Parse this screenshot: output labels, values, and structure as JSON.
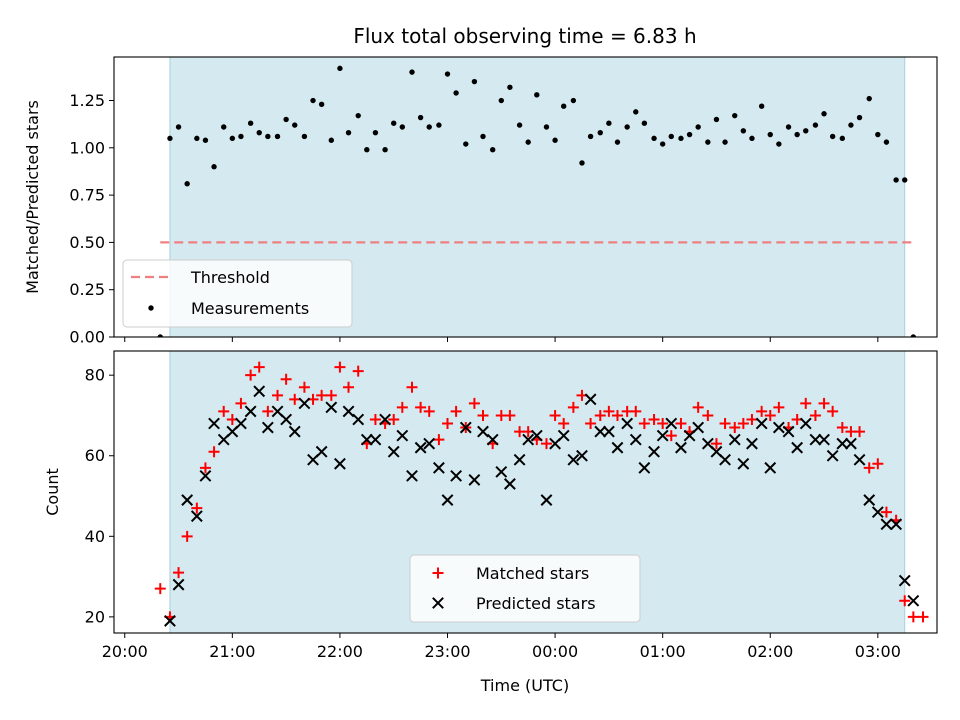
{
  "chart_data": {
    "title": "Flux total observing time = 6.83 h",
    "xlabel": "Time (UTC)",
    "x_axis": {
      "ticks": [
        "20:00",
        "21:00",
        "22:00",
        "23:00",
        "00:00",
        "01:00",
        "02:00",
        "03:00"
      ],
      "tick_hours": [
        0,
        1,
        2,
        3,
        4,
        5,
        6,
        7
      ],
      "range_hours_after_2000": [
        -0.1,
        7.55
      ]
    },
    "shaded_interval_hours_after_2000": [
      0.42,
      7.25
    ],
    "shade_color": "#d4eaf0",
    "panels": [
      {
        "type": "scatter",
        "ylabel": "Matched/Predicted stars",
        "ylim": [
          0.0,
          1.48
        ],
        "yticks": [
          0.0,
          0.25,
          0.5,
          0.75,
          1.0,
          1.25
        ],
        "ytick_labels": [
          "0.00",
          "0.25",
          "0.50",
          "0.75",
          "1.00",
          "1.25"
        ],
        "legend": {
          "position": "lower-left",
          "entries": [
            "Threshold",
            "Measurements"
          ]
        },
        "threshold": {
          "name": "Threshold",
          "value": 0.5,
          "x_range": [
            0.33,
            7.33
          ],
          "color": "#f08080",
          "style": "dashed"
        },
        "series": [
          {
            "name": "Measurements",
            "marker": "dot",
            "color": "#000000",
            "x": [
              0.33,
              0.42,
              0.5,
              0.58,
              0.67,
              0.75,
              0.83,
              0.92,
              1.0,
              1.08,
              1.17,
              1.25,
              1.33,
              1.42,
              1.5,
              1.58,
              1.67,
              1.75,
              1.83,
              1.92,
              2.0,
              2.08,
              2.17,
              2.25,
              2.33,
              2.42,
              2.5,
              2.58,
              2.67,
              2.75,
              2.83,
              2.92,
              3.0,
              3.08,
              3.17,
              3.25,
              3.33,
              3.42,
              3.5,
              3.58,
              3.67,
              3.75,
              3.83,
              3.92,
              4.0,
              4.08,
              4.17,
              4.25,
              4.33,
              4.42,
              4.5,
              4.58,
              4.67,
              4.75,
              4.83,
              4.92,
              5.0,
              5.08,
              5.17,
              5.25,
              5.33,
              5.42,
              5.5,
              5.58,
              5.67,
              5.75,
              5.83,
              5.92,
              6.0,
              6.08,
              6.17,
              6.25,
              6.33,
              6.42,
              6.5,
              6.58,
              6.67,
              6.75,
              6.83,
              6.92,
              7.0,
              7.08,
              7.17,
              7.25,
              7.33
            ],
            "y": [
              0.0,
              1.05,
              1.11,
              0.81,
              1.05,
              1.04,
              0.9,
              1.11,
              1.05,
              1.06,
              1.13,
              1.08,
              1.06,
              1.06,
              1.15,
              1.12,
              1.06,
              1.25,
              1.23,
              1.04,
              1.42,
              1.08,
              1.17,
              0.99,
              1.08,
              0.99,
              1.13,
              1.11,
              1.4,
              1.16,
              1.11,
              1.12,
              1.39,
              1.29,
              1.02,
              1.35,
              1.06,
              0.99,
              1.25,
              1.32,
              1.12,
              1.03,
              1.28,
              1.11,
              1.04,
              1.22,
              1.25,
              0.92,
              1.06,
              1.08,
              1.13,
              1.03,
              1.11,
              1.19,
              1.13,
              1.05,
              1.02,
              1.06,
              1.05,
              1.07,
              1.11,
              1.03,
              1.15,
              1.03,
              1.17,
              1.09,
              1.05,
              1.22,
              1.07,
              1.02,
              1.11,
              1.07,
              1.09,
              1.12,
              1.18,
              1.06,
              1.05,
              1.12,
              1.16,
              1.26,
              1.07,
              1.03,
              0.83,
              0.83,
              0.0
            ]
          }
        ]
      },
      {
        "type": "scatter",
        "ylabel": "Count",
        "ylim": [
          16,
          86
        ],
        "yticks": [
          20,
          40,
          60,
          80
        ],
        "ytick_labels": [
          "20",
          "40",
          "60",
          "80"
        ],
        "legend": {
          "position": "lower-center",
          "entries": [
            "Matched stars",
            "Predicted stars"
          ]
        },
        "series": [
          {
            "name": "Matched stars",
            "marker": "plus",
            "color": "#ff0000",
            "x": [
              0.33,
              0.42,
              0.5,
              0.58,
              0.67,
              0.75,
              0.83,
              0.92,
              1.0,
              1.08,
              1.17,
              1.25,
              1.33,
              1.42,
              1.5,
              1.58,
              1.67,
              1.75,
              1.83,
              1.92,
              2.0,
              2.08,
              2.17,
              2.25,
              2.33,
              2.42,
              2.5,
              2.58,
              2.67,
              2.75,
              2.83,
              2.92,
              3.0,
              3.08,
              3.17,
              3.25,
              3.33,
              3.42,
              3.5,
              3.58,
              3.67,
              3.75,
              3.83,
              3.92,
              4.0,
              4.08,
              4.17,
              4.25,
              4.33,
              4.42,
              4.5,
              4.58,
              4.67,
              4.75,
              4.83,
              4.92,
              5.0,
              5.08,
              5.17,
              5.25,
              5.33,
              5.42,
              5.5,
              5.58,
              5.67,
              5.75,
              5.83,
              5.92,
              6.0,
              6.08,
              6.17,
              6.25,
              6.33,
              6.42,
              6.5,
              6.58,
              6.67,
              6.75,
              6.83,
              6.92,
              7.0,
              7.08,
              7.17,
              7.25,
              7.33,
              7.42
            ],
            "y": [
              27,
              20,
              31,
              40,
              47,
              57,
              61,
              71,
              69,
              73,
              80,
              82,
              71,
              75,
              79,
              74,
              77,
              74,
              75,
              75,
              82,
              77,
              81,
              63,
              69,
              68,
              69,
              72,
              77,
              72,
              71,
              64,
              68,
              71,
              67,
              73,
              70,
              63,
              70,
              70,
              66,
              66,
              64,
              63,
              70,
              68,
              72,
              75,
              68,
              70,
              71,
              70,
              71,
              71,
              68,
              69,
              68,
              65,
              68,
              66,
              72,
              70,
              63,
              68,
              67,
              68,
              69,
              71,
              70,
              72,
              67,
              69,
              73,
              70,
              73,
              71,
              67,
              66,
              66,
              57,
              58,
              46,
              44,
              24,
              20,
              20
            ]
          },
          {
            "name": "Predicted stars",
            "marker": "x",
            "color": "#000000",
            "x": [
              0.42,
              0.5,
              0.58,
              0.67,
              0.75,
              0.83,
              0.92,
              1.0,
              1.08,
              1.17,
              1.25,
              1.33,
              1.42,
              1.5,
              1.58,
              1.67,
              1.75,
              1.83,
              1.92,
              2.0,
              2.08,
              2.17,
              2.25,
              2.33,
              2.42,
              2.5,
              2.58,
              2.67,
              2.75,
              2.83,
              2.92,
              3.0,
              3.08,
              3.17,
              3.25,
              3.33,
              3.42,
              3.5,
              3.58,
              3.67,
              3.75,
              3.83,
              3.92,
              4.0,
              4.08,
              4.17,
              4.25,
              4.33,
              4.42,
              4.5,
              4.58,
              4.67,
              4.75,
              4.83,
              4.92,
              5.0,
              5.08,
              5.17,
              5.25,
              5.33,
              5.42,
              5.5,
              5.58,
              5.67,
              5.75,
              5.83,
              5.92,
              6.0,
              6.08,
              6.17,
              6.25,
              6.33,
              6.42,
              6.5,
              6.58,
              6.67,
              6.75,
              6.83,
              6.92,
              7.0,
              7.08,
              7.17,
              7.25,
              7.33
            ],
            "y": [
              19,
              28,
              49,
              45,
              55,
              68,
              64,
              66,
              68,
              71,
              76,
              67,
              71,
              69,
              66,
              73,
              59,
              61,
              72,
              58,
              71,
              69,
              64,
              64,
              69,
              61,
              65,
              55,
              62,
              63,
              57,
              49,
              55,
              67,
              54,
              66,
              64,
              56,
              53,
              59,
              64,
              65,
              49,
              63,
              65,
              59,
              60,
              74,
              66,
              66,
              62,
              68,
              64,
              57,
              61,
              65,
              68,
              62,
              65,
              67,
              63,
              61,
              59,
              64,
              58,
              63,
              68,
              57,
              67,
              66,
              62,
              68,
              64,
              64,
              60,
              63,
              63,
              59,
              49,
              46,
              43,
              43,
              29,
              24
            ]
          }
        ]
      }
    ]
  }
}
